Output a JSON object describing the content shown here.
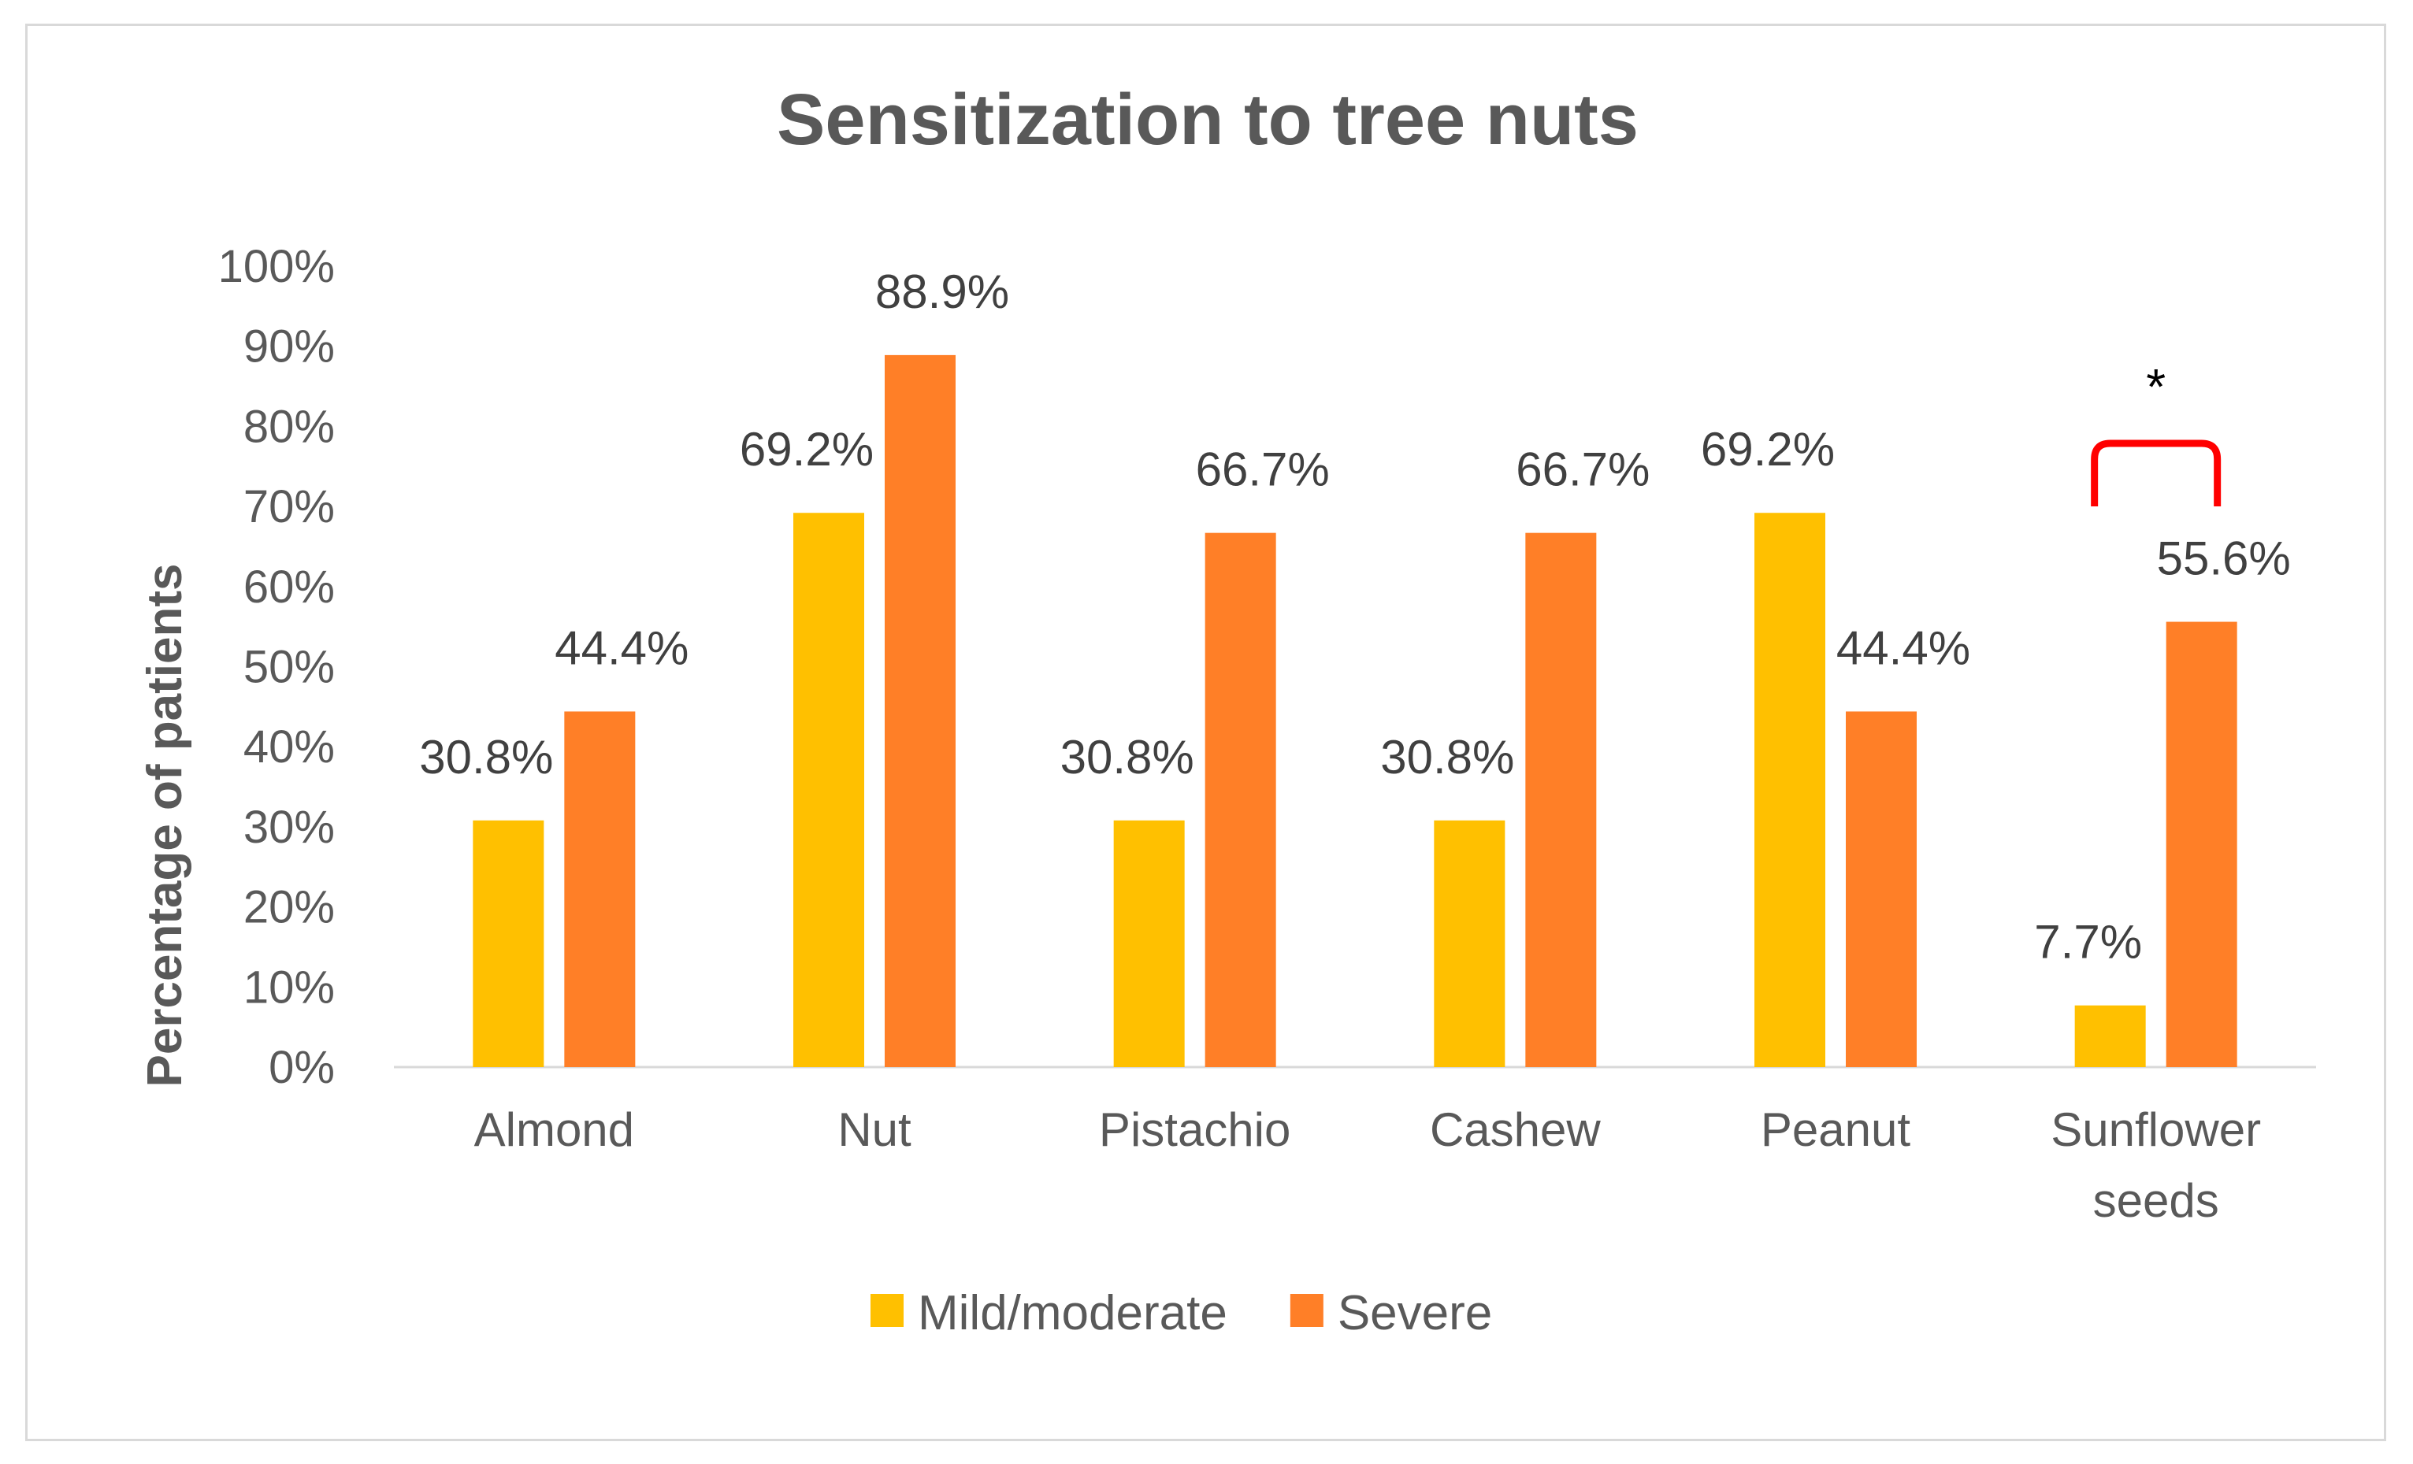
{
  "chart_data": {
    "type": "bar",
    "title": "Sensitization to tree nuts",
    "xlabel": "",
    "ylabel": "Percentage of patients",
    "ylim": [
      0,
      100
    ],
    "yticks": [
      "0%",
      "10%",
      "20%",
      "30%",
      "40%",
      "50%",
      "60%",
      "70%",
      "80%",
      "90%",
      "100%"
    ],
    "categories": [
      [
        "Almond"
      ],
      [
        "Nut"
      ],
      [
        "Pistachio"
      ],
      [
        "Cashew"
      ],
      [
        "Peanut"
      ],
      [
        "Sunflower",
        "seeds"
      ]
    ],
    "series": [
      {
        "name": "Mild/moderate",
        "color": "#FFC000",
        "values": [
          30.8,
          69.2,
          30.8,
          30.8,
          69.2,
          7.7
        ],
        "labels": [
          "30.8%",
          "69.2%",
          "30.8%",
          "30.8%",
          "69.2%",
          "7.7%"
        ]
      },
      {
        "name": "Severe",
        "color": "#FF7F27",
        "values": [
          44.4,
          88.9,
          66.7,
          66.7,
          44.4,
          55.6
        ],
        "labels": [
          "44.4%",
          "88.9%",
          "66.7%",
          "66.7%",
          "44.4%",
          "55.6%"
        ]
      }
    ],
    "grid": false,
    "legend": "bottom",
    "annotation": {
      "text": "*",
      "category": "Sunflower seeds",
      "bracket_color": "#FF0000"
    }
  }
}
